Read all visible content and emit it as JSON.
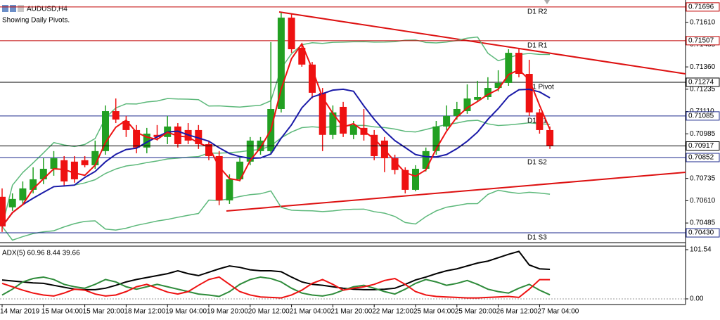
{
  "chart_data": {
    "type": "candlestick",
    "title": "AUDUSD,H4",
    "subtitle": "Showing Daily Pivots.",
    "categories": [
      "14 Mar 2019",
      null,
      null,
      null,
      "15 Mar 04:00",
      null,
      null,
      null,
      "15 Mar 20:00",
      null,
      null,
      null,
      "18 Mar 12:00",
      null,
      null,
      null,
      "19 Mar 04:00",
      null,
      null,
      null,
      "19 Mar 20:00",
      null,
      null,
      null,
      "20 Mar 12:00",
      null,
      null,
      null,
      "21 Mar 04:00",
      null,
      null,
      null,
      "21 Mar 20:00",
      null,
      null,
      null,
      "22 Mar 12:00",
      null,
      null,
      null,
      "25 Mar 04:00",
      null,
      null,
      null,
      "25 Mar 20:00",
      null,
      null,
      null,
      "26 Mar 12:00",
      null,
      null,
      null,
      "27 Mar 04:00",
      null
    ],
    "open": [
      0.70632,
      0.70573,
      0.70612,
      0.70671,
      0.7073,
      0.70789,
      0.70837,
      0.70829,
      0.70837,
      0.70809,
      0.70888,
      0.71112,
      0.71057,
      0.71006,
      0.70908,
      0.70979,
      0.70967,
      0.71026,
      0.71006,
      0.71006,
      0.70927,
      0.7086,
      0.70612,
      0.7073,
      0.70829,
      0.70888,
      0.70888,
      0.71124,
      0.71636,
      0.71467,
      0.71373,
      0.71215,
      0.70979,
      0.71136,
      0.70979,
      0.71018,
      0.70979,
      0.70947,
      0.70848,
      0.70782,
      0.70671,
      0.70789,
      0.70888,
      0.71026,
      0.71085,
      0.71112,
      0.71176,
      0.71191,
      0.71242,
      0.7127,
      0.71439,
      0.71321,
      0.71105,
      0.71006
    ],
    "high": [
      0.70679,
      0.70651,
      0.70718,
      0.70797,
      0.70848,
      0.70888,
      0.7086,
      0.7086,
      0.7086,
      0.70947,
      0.71144,
      0.71183,
      0.71085,
      0.71034,
      0.71018,
      0.71034,
      0.71085,
      0.71045,
      0.71045,
      0.71034,
      0.70947,
      0.70888,
      0.70758,
      0.7086,
      0.70967,
      0.70967,
      0.71499,
      0.71664,
      0.71656,
      0.71491,
      0.71388,
      0.71242,
      0.71144,
      0.71164,
      0.71057,
      0.71124,
      0.71006,
      0.70967,
      0.70868,
      0.70797,
      0.70809,
      0.70908,
      0.71057,
      0.71144,
      0.71164,
      0.71262,
      0.71282,
      0.71302,
      0.71341,
      0.71459,
      0.71467,
      0.714,
      0.71124,
      0.71026
    ],
    "low": [
      0.70435,
      0.70553,
      0.70585,
      0.70651,
      0.70703,
      0.7075,
      0.70691,
      0.70711,
      0.70797,
      0.70789,
      0.70868,
      0.71045,
      0.70967,
      0.70876,
      0.70876,
      0.70947,
      0.70927,
      0.70908,
      0.70927,
      0.709,
      0.70837,
      0.70585,
      0.70592,
      0.70718,
      0.70809,
      0.70868,
      0.70868,
      0.71105,
      0.71439,
      0.71361,
      0.71183,
      0.70888,
      0.70955,
      0.70967,
      0.70955,
      0.70947,
      0.70837,
      0.7077,
      0.70758,
      0.70651,
      0.70663,
      0.70774,
      0.70868,
      0.71006,
      0.71065,
      0.71097,
      0.71164,
      0.71176,
      0.71223,
      0.71254,
      0.71302,
      0.71085,
      0.70986,
      0.709
    ],
    "close": [
      0.70466,
      0.7062,
      0.70679,
      0.7073,
      0.70789,
      0.70848,
      0.70718,
      0.7073,
      0.70809,
      0.70888,
      0.71112,
      0.71065,
      0.71006,
      0.70908,
      0.70986,
      0.70967,
      0.71026,
      0.70927,
      0.70947,
      0.70927,
      0.7086,
      0.70612,
      0.7073,
      0.70829,
      0.70947,
      0.70947,
      0.71124,
      0.71636,
      0.71459,
      0.71373,
      0.71215,
      0.70979,
      0.71105,
      0.70986,
      0.71034,
      0.70979,
      0.7086,
      0.70848,
      0.70782,
      0.70671,
      0.70789,
      0.70888,
      0.71026,
      0.71085,
      0.71124,
      0.71183,
      0.71191,
      0.71242,
      0.7127,
      0.71439,
      0.71321,
      0.71105,
      0.71006,
      0.70917
    ],
    "up_color": "#22a022",
    "down_color": "#ee1111",
    "ylim": [
      0.70375,
      0.71735
    ],
    "yticks": [
      {
        "value": 0.7161,
        "label": "0.71610"
      },
      0.71485,
      {
        "value": 0.7136,
        "label": "0.71360"
      },
      0.71235,
      {
        "value": 0.7111,
        "label": "0.71110"
      },
      0.70985,
      {
        "value": 0.7086,
        "label": "0.70860"
      },
      0.70735,
      {
        "value": 0.7061,
        "label": "0.70610"
      },
      0.70485
    ],
    "levels": [
      {
        "name": "D1 R2",
        "value": 0.71696,
        "color": "#c00000"
      },
      {
        "name": "D1 R1",
        "value": 0.71507,
        "color": "#c00000"
      },
      {
        "name": "D1 Pivot",
        "value": 0.71274,
        "color": "#000000"
      },
      {
        "name": "D1 S1",
        "value": 0.71085,
        "color": "#1c2a8c"
      },
      {
        "name": "D1 S2",
        "value": 0.70852,
        "color": "#1c2a8c"
      },
      {
        "name": "D1 S3",
        "value": 0.7043,
        "label": "0.70430",
        "color": "#1c2a8c"
      }
    ],
    "current_price": 0.70917,
    "indicator": {
      "label": "ADX(5) 60.96 8.44 39.66",
      "ylim": [
        -10.2,
        108.8
      ],
      "yticks": [
        101.54,
        {
          "value": 0,
          "label": "0.00"
        }
      ],
      "series": [
        {
          "color": "#000000",
          "values": [
            39,
            37,
            35,
            33,
            32,
            28,
            24,
            20,
            19,
            19,
            22,
            28,
            35,
            40,
            44,
            48,
            52,
            58,
            52,
            48,
            55,
            62,
            68,
            65,
            60,
            58,
            58,
            56,
            45,
            35,
            30,
            28,
            25,
            22,
            20,
            19,
            19,
            20,
            22,
            30,
            39,
            45,
            52,
            58,
            62,
            68,
            74,
            78,
            85,
            92,
            98,
            70,
            62,
            60.96
          ]
        },
        {
          "color": "#2e8b3a",
          "values": [
            8,
            20,
            35,
            42,
            45,
            40,
            30,
            25,
            22,
            30,
            40,
            35,
            25,
            20,
            25,
            30,
            25,
            20,
            15,
            10,
            8,
            5,
            15,
            30,
            40,
            45,
            42,
            35,
            22,
            12,
            8,
            6,
            10,
            18,
            25,
            28,
            22,
            15,
            10,
            20,
            32,
            40,
            35,
            28,
            32,
            38,
            30,
            20,
            15,
            12,
            22,
            30,
            18,
            8.44
          ]
        },
        {
          "color": "#ee1111",
          "values": [
            32,
            25,
            18,
            12,
            8,
            6,
            12,
            20,
            18,
            10,
            6,
            8,
            15,
            25,
            30,
            22,
            14,
            10,
            15,
            28,
            40,
            45,
            30,
            15,
            8,
            4,
            3,
            2,
            8,
            18,
            32,
            40,
            30,
            18,
            22,
            25,
            30,
            38,
            42,
            30,
            15,
            8,
            5,
            4,
            3,
            2,
            2,
            3,
            4,
            5,
            3,
            20,
            39.66,
            39.66
          ]
        }
      ]
    }
  }
}
